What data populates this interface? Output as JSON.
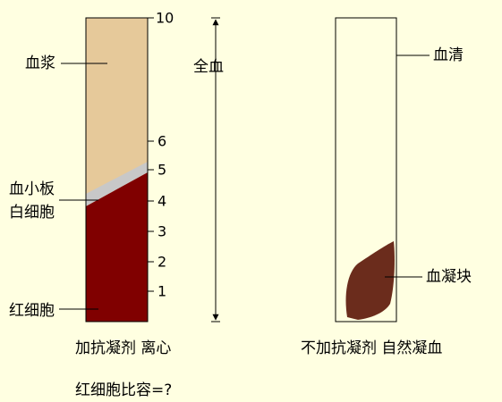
{
  "left_tube": {
    "labels": [
      "血浆",
      "血小板",
      "白细胞",
      "红细胞"
    ],
    "scale": [
      "10",
      "6",
      "5",
      "4",
      "3",
      "2",
      "1"
    ],
    "whole_blood": "全血",
    "caption": "加抗凝剂 离心",
    "question": "红细胞比容=?"
  },
  "right_tube": {
    "labels": [
      "血清",
      "血凝块"
    ],
    "caption": "不加抗凝剂 自然凝血"
  }
}
